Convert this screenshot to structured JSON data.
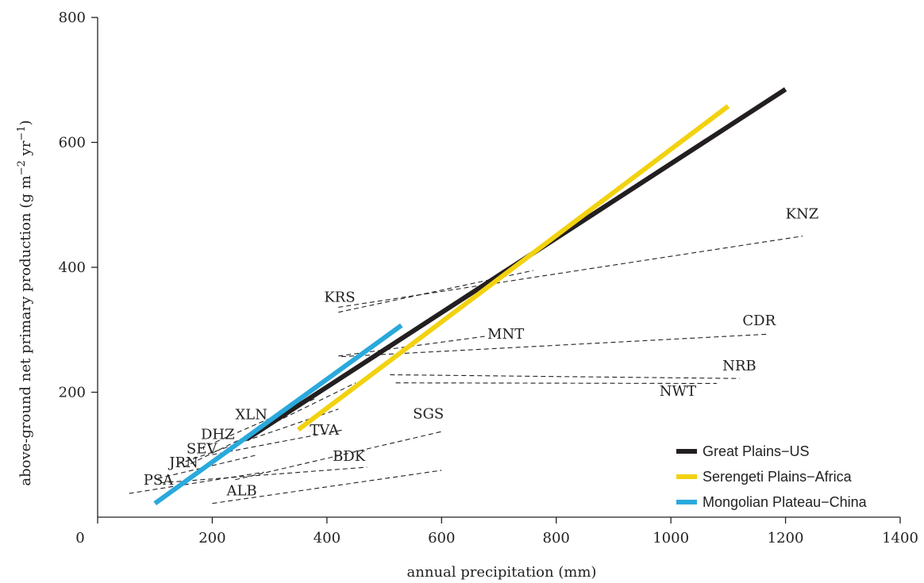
{
  "chart_data": {
    "type": "line",
    "xlabel": "annual precipitation (mm)",
    "ylabel": {
      "main": "above-ground net primary production (g m",
      "sup1": "−2",
      "mid": " yr",
      "sup2": "−1",
      "end": ")"
    },
    "xlim": [
      0,
      1400
    ],
    "ylim": [
      0,
      800
    ],
    "xticks": [
      "0",
      "200",
      "400",
      "600",
      "800",
      "1000",
      "1200",
      "1400"
    ],
    "yticks": [
      "200",
      "400",
      "600",
      "800"
    ],
    "grid": false,
    "legend_position": "bottom-right",
    "series": [
      {
        "name": "Great Plains−US",
        "color": "#231f20",
        "x": [
          260,
          1200
        ],
        "y": [
          125,
          685
        ]
      },
      {
        "name": "Serengeti Plains−Africa",
        "color": "#f2d20f",
        "x": [
          350,
          1100
        ],
        "y": [
          140,
          658
        ]
      },
      {
        "name": "Mongolian Plateau−China",
        "color": "#2aa9dc",
        "x": [
          100,
          530
        ],
        "y": [
          22,
          307
        ]
      }
    ],
    "sites": [
      {
        "label": "KNZ",
        "x": [
          420,
          1230
        ],
        "y": [
          336,
          450
        ],
        "lx": 1200,
        "ly": 478
      },
      {
        "label": "KRS",
        "x": [
          420,
          760
        ],
        "y": [
          328,
          395
        ],
        "lx": 395,
        "ly": 345
      },
      {
        "label": "CDR",
        "x": [
          425,
          1170
        ],
        "y": [
          257,
          293
        ],
        "lx": 1125,
        "ly": 307
      },
      {
        "label": "MNT",
        "x": [
          420,
          680
        ],
        "y": [
          258,
          290
        ],
        "lx": 680,
        "ly": 286
      },
      {
        "label": "NRB",
        "x": [
          510,
          1120
        ],
        "y": [
          228,
          222
        ],
        "lx": 1090,
        "ly": 235
      },
      {
        "label": "NWT",
        "x": [
          520,
          1080
        ],
        "y": [
          215,
          214
        ],
        "lx": 980,
        "ly": 194
      },
      {
        "label": "XLN",
        "x": [
          180,
          380
        ],
        "y": [
          110,
          190
        ],
        "lx": 240,
        "ly": 157
      },
      {
        "label": "DHZ",
        "x": [
          150,
          450
        ],
        "y": [
          80,
          215
        ],
        "lx": 180,
        "ly": 125
      },
      {
        "label": "SEV",
        "x": [
          140,
          420
        ],
        "y": [
          85,
          173
        ],
        "lx": 155,
        "ly": 102
      },
      {
        "label": "TVA",
        "x": [
          200,
          430
        ],
        "y": [
          100,
          140
        ],
        "lx": 370,
        "ly": 132
      },
      {
        "label": "SGS",
        "x": [
          240,
          600
        ],
        "y": [
          60,
          137
        ],
        "lx": 550,
        "ly": 158
      },
      {
        "label": "JRN",
        "x": [
          105,
          280
        ],
        "y": [
          62,
          100
        ],
        "lx": 125,
        "ly": 80
      },
      {
        "label": "BDK",
        "x": [
          110,
          470
        ],
        "y": [
          55,
          80
        ],
        "lx": 410,
        "ly": 90
      },
      {
        "label": "PSA",
        "x": [
          55,
          290
        ],
        "y": [
          38,
          72
        ],
        "lx": 80,
        "ly": 52
      },
      {
        "label": "ALB",
        "x": [
          200,
          600
        ],
        "y": [
          22,
          75
        ],
        "lx": 225,
        "ly": 35
      }
    ]
  }
}
